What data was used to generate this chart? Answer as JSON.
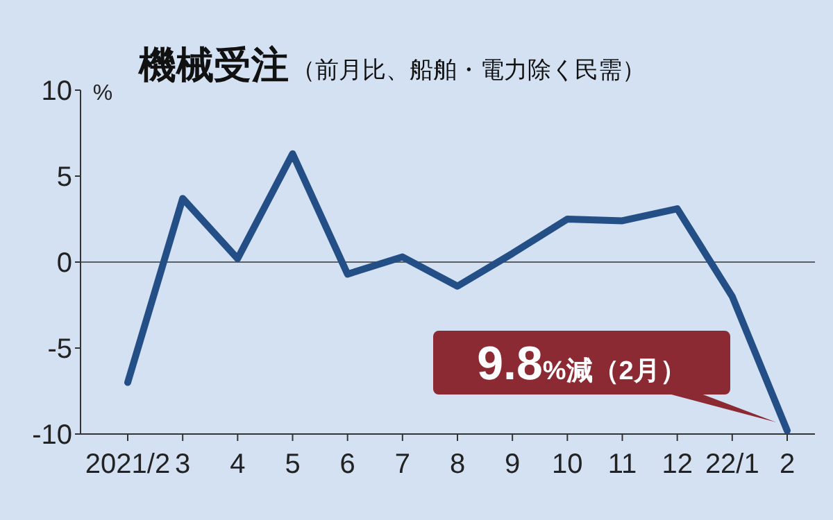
{
  "chart_data": {
    "type": "line",
    "title": "機械受注",
    "subtitle": "（前月比、船舶・電力除く民需）",
    "ylabel": "%",
    "categories": [
      "2021/2",
      "3",
      "4",
      "5",
      "6",
      "7",
      "8",
      "9",
      "10",
      "11",
      "12",
      "22/1",
      "2"
    ],
    "series": [
      {
        "color": "#234f86",
        "values": [
          -7.0,
          3.7,
          0.2,
          6.3,
          -0.7,
          0.3,
          -1.4,
          0.5,
          2.5,
          2.4,
          3.1,
          -2.0,
          -9.8
        ]
      }
    ],
    "ylim": [
      -10,
      10
    ],
    "yticks": [
      -10,
      -5,
      0,
      5,
      10
    ],
    "grid": false,
    "marker": "none",
    "line_style": "solid",
    "ref_lines": [
      {
        "axis": "y",
        "value": 0,
        "color": "#333333"
      }
    ],
    "annotations": [
      {
        "text": "9.8%減（2月）",
        "x": "2",
        "y": -9.8
      }
    ]
  }
}
